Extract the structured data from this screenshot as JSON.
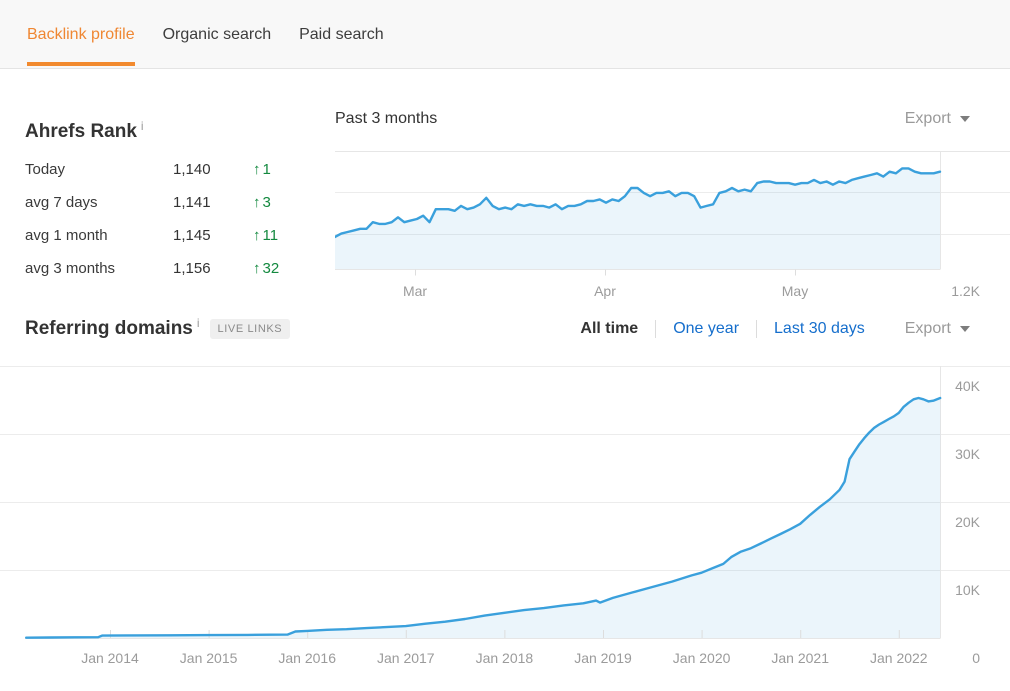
{
  "tabs": {
    "items": [
      {
        "label": "Backlink profile",
        "active": true
      },
      {
        "label": "Organic search",
        "active": false
      },
      {
        "label": "Paid search",
        "active": false
      }
    ]
  },
  "ahrefs_rank": {
    "title": "Ahrefs Rank",
    "info_icon": "i",
    "up_arrow": "↑",
    "rows": [
      {
        "label": "Today",
        "value": "1,140",
        "change": "1"
      },
      {
        "label": "avg 7 days",
        "value": "1,141",
        "change": "3"
      },
      {
        "label": "avg 1 month",
        "value": "1,145",
        "change": "11"
      },
      {
        "label": "avg 3 months",
        "value": "1,156",
        "change": "32"
      }
    ]
  },
  "rank_chart_panel": {
    "title": "Past 3 months",
    "export_label": "Export"
  },
  "referring_domains": {
    "title": "Referring domains",
    "info_icon": "i",
    "badge": "LIVE LINKS",
    "filters": [
      {
        "label": "All time",
        "active": true
      },
      {
        "label": "One year",
        "active": false
      },
      {
        "label": "Last 30 days",
        "active": false
      }
    ],
    "export_label": "Export"
  },
  "colors": {
    "accent_orange": "#ef8733",
    "link_blue": "#156ecc",
    "positive_green": "#13893f",
    "chart_line_blue": "#3aa0dc",
    "chart_fill_blue": "rgba(58,160,220,0.10)",
    "grid_gray": "#ececec",
    "axis_gray": "#e6e6e6",
    "tick_gray": "#dddddd",
    "axis_text_gray": "#9b9b9b"
  },
  "chart_data": [
    {
      "id": "ahrefs-rank-past-3-months",
      "type": "area",
      "title": "Past 3 months",
      "series_name": "Ahrefs Rank",
      "inverted_axis": true,
      "x_labels": [
        "Mar",
        "Apr",
        "May"
      ],
      "y_axis_label": "1.2K",
      "y_axis_bottom_value": 1200,
      "values": [
        1180,
        1178,
        1177,
        1176,
        1175,
        1175,
        1171,
        1172,
        1172,
        1171,
        1168,
        1171,
        1170,
        1169,
        1167,
        1171,
        1163,
        1163,
        1163,
        1164,
        1161,
        1163,
        1162,
        1160,
        1156,
        1161,
        1163,
        1162,
        1163,
        1160,
        1161,
        1160,
        1161,
        1161,
        1162,
        1160,
        1163,
        1161,
        1161,
        1160,
        1158,
        1158,
        1157,
        1159,
        1157,
        1158,
        1155,
        1150,
        1150,
        1153,
        1155,
        1153,
        1153,
        1152,
        1155,
        1153,
        1153,
        1155,
        1162,
        1161,
        1160,
        1153,
        1152,
        1150,
        1152,
        1151,
        1152,
        1147,
        1146,
        1146,
        1147,
        1147,
        1147,
        1148,
        1147,
        1147,
        1145,
        1147,
        1146,
        1148,
        1146,
        1147,
        1145,
        1144,
        1143,
        1142,
        1141,
        1143,
        1140,
        1141,
        1138,
        1138,
        1140,
        1141,
        1141,
        1141,
        1140
      ]
    },
    {
      "id": "referring-domains-all-time",
      "type": "area",
      "series_name": "Referring domains",
      "y_unit": "K",
      "ylim": [
        0,
        44
      ],
      "x_labels": [
        {
          "label": "Jan 2014",
          "year": 2014
        },
        {
          "label": "Jan 2015",
          "year": 2015
        },
        {
          "label": "Jan 2016",
          "year": 2016
        },
        {
          "label": "Jan 2017",
          "year": 2017
        },
        {
          "label": "Jan 2018",
          "year": 2018
        },
        {
          "label": "Jan 2019",
          "year": 2019
        },
        {
          "label": "Jan 2020",
          "year": 2020
        },
        {
          "label": "Jan 2021",
          "year": 2021
        },
        {
          "label": "Jan 2022",
          "year": 2022
        }
      ],
      "y_ticks": [
        {
          "label": "40K",
          "value": 40
        },
        {
          "label": "30K",
          "value": 30
        },
        {
          "label": "20K",
          "value": 20
        },
        {
          "label": "10K",
          "value": 10
        },
        {
          "label": "0",
          "value": 0
        }
      ],
      "points": [
        [
          2013.15,
          0.05
        ],
        [
          2013.4,
          0.07
        ],
        [
          2013.65,
          0.1
        ],
        [
          2013.88,
          0.12
        ],
        [
          2013.92,
          0.35
        ],
        [
          2014.2,
          0.38
        ],
        [
          2014.6,
          0.4
        ],
        [
          2015.0,
          0.42
        ],
        [
          2015.4,
          0.45
        ],
        [
          2015.8,
          0.5
        ],
        [
          2015.88,
          0.95
        ],
        [
          2016.0,
          1.05
        ],
        [
          2016.2,
          1.2
        ],
        [
          2016.4,
          1.3
        ],
        [
          2016.6,
          1.45
        ],
        [
          2016.8,
          1.6
        ],
        [
          2017.0,
          1.75
        ],
        [
          2017.2,
          2.1
        ],
        [
          2017.4,
          2.4
        ],
        [
          2017.6,
          2.8
        ],
        [
          2017.8,
          3.3
        ],
        [
          2018.0,
          3.7
        ],
        [
          2018.2,
          4.1
        ],
        [
          2018.4,
          4.4
        ],
        [
          2018.6,
          4.8
        ],
        [
          2018.8,
          5.1
        ],
        [
          2018.93,
          5.5
        ],
        [
          2018.97,
          5.2
        ],
        [
          2019.1,
          5.9
        ],
        [
          2019.3,
          6.7
        ],
        [
          2019.5,
          7.5
        ],
        [
          2019.7,
          8.3
        ],
        [
          2019.9,
          9.2
        ],
        [
          2020.0,
          9.6
        ],
        [
          2020.1,
          10.2
        ],
        [
          2020.22,
          10.9
        ],
        [
          2020.3,
          11.9
        ],
        [
          2020.4,
          12.7
        ],
        [
          2020.5,
          13.2
        ],
        [
          2020.6,
          13.9
        ],
        [
          2020.7,
          14.6
        ],
        [
          2020.8,
          15.3
        ],
        [
          2020.9,
          16.0
        ],
        [
          2021.0,
          16.8
        ],
        [
          2021.1,
          18.1
        ],
        [
          2021.2,
          19.3
        ],
        [
          2021.3,
          20.4
        ],
        [
          2021.4,
          21.8
        ],
        [
          2021.45,
          23.0
        ],
        [
          2021.5,
          26.3
        ],
        [
          2021.55,
          27.4
        ],
        [
          2021.6,
          28.5
        ],
        [
          2021.65,
          29.4
        ],
        [
          2021.7,
          30.2
        ],
        [
          2021.75,
          30.9
        ],
        [
          2021.8,
          31.4
        ],
        [
          2021.85,
          31.8
        ],
        [
          2021.9,
          32.2
        ],
        [
          2021.95,
          32.6
        ],
        [
          2022.0,
          33.1
        ],
        [
          2022.05,
          34.0
        ],
        [
          2022.1,
          34.6
        ],
        [
          2022.15,
          35.1
        ],
        [
          2022.2,
          35.3
        ],
        [
          2022.25,
          35.1
        ],
        [
          2022.3,
          34.8
        ],
        [
          2022.35,
          34.9
        ],
        [
          2022.42,
          35.3
        ]
      ]
    }
  ]
}
